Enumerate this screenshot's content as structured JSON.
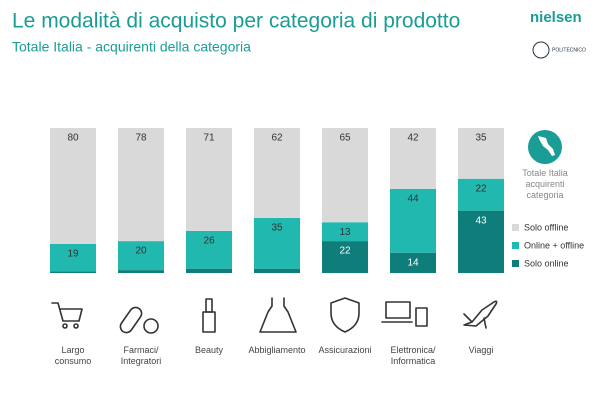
{
  "chart_data": {
    "type": "stacked_bar",
    "title": "Le modalità di acquisto per categoria di prodotto",
    "subtitle": "Totale Italia - acquirenti della categoria",
    "logos": [
      "nielsen",
      "POLITECNICO"
    ],
    "note": "Totale Italia\nacquirenti\ncategoria",
    "categories": [
      "Largo\nconsumo",
      "Farmaci/\nIntegratori",
      "Beauty",
      "Abbigliamento",
      "Assicurazioni",
      "Elettronica/\nInformatica",
      "Viaggi"
    ],
    "ylim": [
      0,
      100
    ],
    "series": [
      {
        "name": "Solo online",
        "color": "#0f7d79",
        "values": [
          1,
          2,
          3,
          3,
          22,
          14,
          43
        ]
      },
      {
        "name": "Online + offline",
        "color": "#21b8b0",
        "values": [
          19,
          20,
          26,
          35,
          13,
          44,
          22
        ]
      },
      {
        "name": "Solo offline",
        "color": "#d9d9d9",
        "values": [
          80,
          78,
          71,
          62,
          65,
          42,
          35
        ]
      }
    ]
  }
}
